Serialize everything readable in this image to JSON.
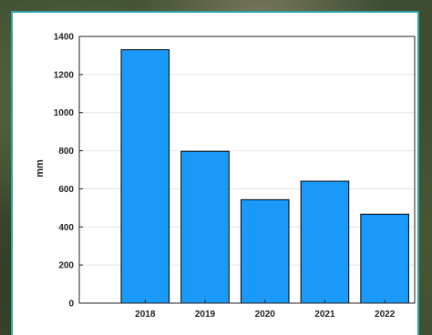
{
  "chart_data": {
    "type": "bar",
    "categories": [
      "2018",
      "2019",
      "2020",
      "2021",
      "2022"
    ],
    "values": [
      1330,
      797,
      543,
      640,
      467
    ],
    "title": "",
    "xlabel": "",
    "ylabel": "mm",
    "ylim": [
      0,
      1400
    ],
    "yticks": [
      "0",
      "200",
      "400",
      "600",
      "800",
      "1000",
      "1200",
      "1400"
    ],
    "grid": true,
    "colors": {
      "bar": "#1a9bfc",
      "bar_edge": "#000000",
      "grid": "#e6e6e6",
      "axis": "#222222"
    }
  }
}
